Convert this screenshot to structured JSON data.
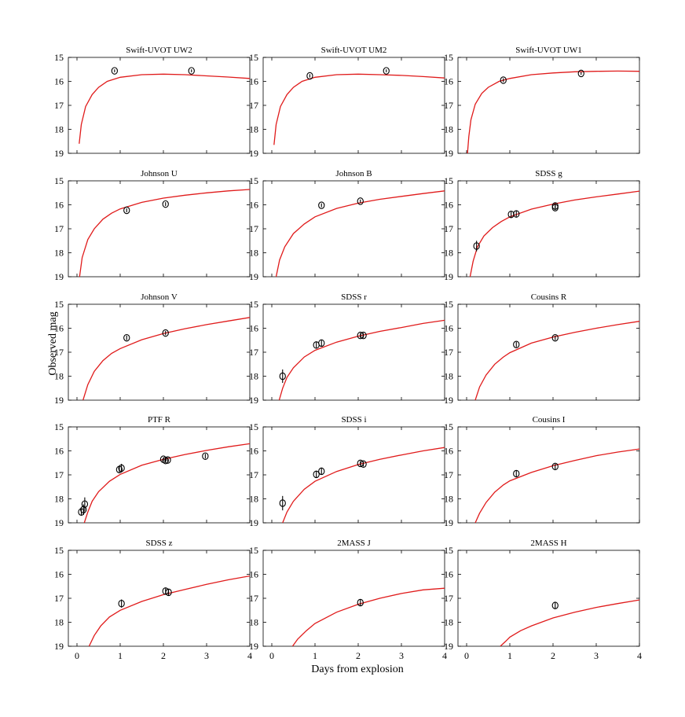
{
  "figure": {
    "ylabel": "Observed mag",
    "xlabel": "Days from explosion"
  },
  "chart_data": {
    "type": "scatter",
    "title": "",
    "xlabel": "Days from explosion",
    "ylabel": "Observed mag",
    "xlim": [
      -0.2,
      4
    ],
    "ylim": [
      19,
      15
    ],
    "y_inverted": true,
    "x_ticks": [
      0,
      1,
      2,
      3,
      4
    ],
    "y_ticks": [
      15,
      16,
      17,
      18,
      19
    ],
    "colors": {
      "model": "#e01b1b",
      "points": "#000000"
    },
    "grid": false,
    "panels": [
      {
        "title": "Swift-UVOT UW2",
        "model": [
          [
            0.05,
            18.6
          ],
          [
            0.1,
            17.8
          ],
          [
            0.2,
            17.05
          ],
          [
            0.35,
            16.55
          ],
          [
            0.5,
            16.25
          ],
          [
            0.7,
            16.0
          ],
          [
            1.0,
            15.83
          ],
          [
            1.5,
            15.72
          ],
          [
            2.0,
            15.7
          ],
          [
            2.5,
            15.72
          ],
          [
            3.0,
            15.77
          ],
          [
            3.5,
            15.82
          ],
          [
            4.0,
            15.88
          ]
        ],
        "points": [
          {
            "x": 0.87,
            "y": 15.56,
            "err": 0.06
          },
          {
            "x": 2.65,
            "y": 15.56,
            "err": 0.06
          }
        ]
      },
      {
        "title": "Swift-UVOT UM2",
        "model": [
          [
            0.05,
            18.65
          ],
          [
            0.1,
            17.8
          ],
          [
            0.2,
            17.05
          ],
          [
            0.35,
            16.55
          ],
          [
            0.5,
            16.25
          ],
          [
            0.7,
            16.0
          ],
          [
            1.0,
            15.83
          ],
          [
            1.5,
            15.72
          ],
          [
            2.0,
            15.7
          ],
          [
            2.5,
            15.72
          ],
          [
            3.0,
            15.75
          ],
          [
            3.5,
            15.8
          ],
          [
            4.0,
            15.86
          ]
        ],
        "points": [
          {
            "x": 0.88,
            "y": 15.77,
            "err": 0.07
          },
          {
            "x": 2.65,
            "y": 15.56,
            "err": 0.06
          }
        ]
      },
      {
        "title": "Swift-UVOT UW1",
        "model": [
          [
            0.02,
            19.0
          ],
          [
            0.05,
            18.3
          ],
          [
            0.1,
            17.6
          ],
          [
            0.2,
            16.95
          ],
          [
            0.35,
            16.5
          ],
          [
            0.5,
            16.25
          ],
          [
            0.75,
            16.0
          ],
          [
            1.0,
            15.88
          ],
          [
            1.5,
            15.72
          ],
          [
            2.0,
            15.65
          ],
          [
            2.5,
            15.6
          ],
          [
            3.0,
            15.58
          ],
          [
            3.5,
            15.57
          ],
          [
            4.0,
            15.58
          ]
        ],
        "points": [
          {
            "x": 0.85,
            "y": 15.95,
            "err": 0.08
          },
          {
            "x": 2.65,
            "y": 15.67,
            "err": 0.06
          }
        ]
      },
      {
        "title": "Johnson U",
        "model": [
          [
            0.06,
            19.0
          ],
          [
            0.12,
            18.2
          ],
          [
            0.25,
            17.45
          ],
          [
            0.4,
            17.0
          ],
          [
            0.6,
            16.6
          ],
          [
            0.8,
            16.35
          ],
          [
            1.0,
            16.17
          ],
          [
            1.5,
            15.9
          ],
          [
            2.0,
            15.72
          ],
          [
            2.5,
            15.6
          ],
          [
            3.0,
            15.5
          ],
          [
            3.5,
            15.42
          ],
          [
            4.0,
            15.36
          ]
        ],
        "points": [
          {
            "x": 1.15,
            "y": 16.23,
            "err": 0.08
          },
          {
            "x": 2.05,
            "y": 15.97,
            "err": 0.08
          }
        ]
      },
      {
        "title": "Johnson B",
        "model": [
          [
            0.1,
            19.0
          ],
          [
            0.18,
            18.3
          ],
          [
            0.3,
            17.75
          ],
          [
            0.5,
            17.2
          ],
          [
            0.75,
            16.8
          ],
          [
            1.0,
            16.5
          ],
          [
            1.5,
            16.15
          ],
          [
            2.0,
            15.93
          ],
          [
            2.5,
            15.77
          ],
          [
            3.0,
            15.65
          ],
          [
            3.5,
            15.53
          ],
          [
            4.0,
            15.42
          ]
        ],
        "points": [
          {
            "x": 1.15,
            "y": 16.02,
            "err": 0.08
          },
          {
            "x": 2.05,
            "y": 15.85,
            "err": 0.07
          }
        ]
      },
      {
        "title": "SDSS g",
        "model": [
          [
            0.08,
            19.0
          ],
          [
            0.15,
            18.35
          ],
          [
            0.25,
            17.75
          ],
          [
            0.4,
            17.3
          ],
          [
            0.6,
            16.95
          ],
          [
            0.8,
            16.7
          ],
          [
            1.0,
            16.5
          ],
          [
            1.5,
            16.18
          ],
          [
            2.0,
            15.97
          ],
          [
            2.5,
            15.8
          ],
          [
            3.0,
            15.67
          ],
          [
            3.5,
            15.55
          ],
          [
            4.0,
            15.43
          ]
        ],
        "points": [
          {
            "x": 0.23,
            "y": 17.72,
            "err": 0.22
          },
          {
            "x": 1.03,
            "y": 16.4,
            "err": 0.13
          },
          {
            "x": 1.15,
            "y": 16.38,
            "err": 0.12
          },
          {
            "x": 2.05,
            "y": 16.05,
            "err": 0.1
          },
          {
            "x": 2.05,
            "y": 16.12,
            "err": 0.1
          }
        ]
      },
      {
        "title": "Johnson V",
        "model": [
          [
            0.14,
            19.0
          ],
          [
            0.25,
            18.35
          ],
          [
            0.4,
            17.8
          ],
          [
            0.6,
            17.35
          ],
          [
            0.8,
            17.05
          ],
          [
            1.0,
            16.85
          ],
          [
            1.5,
            16.48
          ],
          [
            2.0,
            16.22
          ],
          [
            2.5,
            16.02
          ],
          [
            3.0,
            15.85
          ],
          [
            3.5,
            15.7
          ],
          [
            4.0,
            15.55
          ]
        ],
        "points": [
          {
            "x": 1.15,
            "y": 16.4,
            "err": 0.1
          },
          {
            "x": 2.05,
            "y": 16.2,
            "err": 0.09
          }
        ]
      },
      {
        "title": "SDSS r",
        "model": [
          [
            0.17,
            19.0
          ],
          [
            0.25,
            18.5
          ],
          [
            0.35,
            18.05
          ],
          [
            0.5,
            17.65
          ],
          [
            0.75,
            17.2
          ],
          [
            1.0,
            16.92
          ],
          [
            1.5,
            16.58
          ],
          [
            2.0,
            16.33
          ],
          [
            2.5,
            16.13
          ],
          [
            3.0,
            15.97
          ],
          [
            3.5,
            15.8
          ],
          [
            4.0,
            15.67
          ]
        ],
        "points": [
          {
            "x": 0.25,
            "y": 18.0,
            "err": 0.28
          },
          {
            "x": 1.03,
            "y": 16.7,
            "err": 0.13
          },
          {
            "x": 1.15,
            "y": 16.62,
            "err": 0.12
          },
          {
            "x": 2.05,
            "y": 16.3,
            "err": 0.1
          },
          {
            "x": 2.12,
            "y": 16.3,
            "err": 0.1
          }
        ]
      },
      {
        "title": "Cousins R",
        "model": [
          [
            0.2,
            19.0
          ],
          [
            0.3,
            18.45
          ],
          [
            0.45,
            17.95
          ],
          [
            0.65,
            17.5
          ],
          [
            0.85,
            17.2
          ],
          [
            1.0,
            17.02
          ],
          [
            1.5,
            16.62
          ],
          [
            2.0,
            16.37
          ],
          [
            2.5,
            16.17
          ],
          [
            3.0,
            16.0
          ],
          [
            3.5,
            15.85
          ],
          [
            4.0,
            15.71
          ]
        ],
        "points": [
          {
            "x": 1.15,
            "y": 16.68,
            "err": 0.11
          },
          {
            "x": 2.05,
            "y": 16.4,
            "err": 0.1
          }
        ]
      },
      {
        "title": "PTF R",
        "model": [
          [
            0.17,
            19.0
          ],
          [
            0.25,
            18.55
          ],
          [
            0.35,
            18.1
          ],
          [
            0.5,
            17.7
          ],
          [
            0.75,
            17.27
          ],
          [
            1.0,
            16.98
          ],
          [
            1.5,
            16.6
          ],
          [
            2.0,
            16.35
          ],
          [
            2.5,
            16.15
          ],
          [
            3.0,
            15.98
          ],
          [
            3.5,
            15.83
          ],
          [
            4.0,
            15.7
          ]
        ],
        "points": [
          {
            "x": 0.1,
            "y": 18.55,
            "err": 0.15
          },
          {
            "x": 0.15,
            "y": 18.45,
            "err": 0.22
          },
          {
            "x": 0.18,
            "y": 18.22,
            "err": 0.28
          },
          {
            "x": 0.98,
            "y": 16.78,
            "err": 0.12
          },
          {
            "x": 1.03,
            "y": 16.72,
            "err": 0.18
          },
          {
            "x": 2.0,
            "y": 16.35,
            "err": 0.08
          },
          {
            "x": 2.05,
            "y": 16.4,
            "err": 0.1
          },
          {
            "x": 2.1,
            "y": 16.38,
            "err": 0.08
          },
          {
            "x": 2.97,
            "y": 16.22,
            "err": 0.1
          }
        ]
      },
      {
        "title": "SDSS i",
        "model": [
          [
            0.25,
            19.0
          ],
          [
            0.35,
            18.55
          ],
          [
            0.5,
            18.1
          ],
          [
            0.75,
            17.6
          ],
          [
            1.0,
            17.27
          ],
          [
            1.5,
            16.86
          ],
          [
            2.0,
            16.57
          ],
          [
            2.5,
            16.35
          ],
          [
            3.0,
            16.17
          ],
          [
            3.5,
            16.0
          ],
          [
            4.0,
            15.86
          ]
        ],
        "points": [
          {
            "x": 0.25,
            "y": 18.18,
            "err": 0.3
          },
          {
            "x": 1.03,
            "y": 16.98,
            "err": 0.15
          },
          {
            "x": 1.15,
            "y": 16.85,
            "err": 0.14
          },
          {
            "x": 2.05,
            "y": 16.52,
            "err": 0.1
          },
          {
            "x": 2.12,
            "y": 16.55,
            "err": 0.1
          }
        ]
      },
      {
        "title": "Cousins I",
        "model": [
          [
            0.2,
            19.0
          ],
          [
            0.3,
            18.6
          ],
          [
            0.45,
            18.15
          ],
          [
            0.65,
            17.72
          ],
          [
            0.85,
            17.42
          ],
          [
            1.0,
            17.25
          ],
          [
            1.5,
            16.9
          ],
          [
            2.0,
            16.62
          ],
          [
            2.5,
            16.4
          ],
          [
            3.0,
            16.2
          ],
          [
            3.5,
            16.05
          ],
          [
            4.0,
            15.92
          ]
        ],
        "points": [
          {
            "x": 1.15,
            "y": 16.95,
            "err": 0.13
          },
          {
            "x": 2.05,
            "y": 16.65,
            "err": 0.12
          }
        ]
      },
      {
        "title": "SDSS z",
        "model": [
          [
            0.28,
            19.0
          ],
          [
            0.4,
            18.55
          ],
          [
            0.55,
            18.15
          ],
          [
            0.75,
            17.78
          ],
          [
            1.0,
            17.5
          ],
          [
            1.5,
            17.13
          ],
          [
            2.0,
            16.85
          ],
          [
            2.5,
            16.63
          ],
          [
            3.0,
            16.42
          ],
          [
            3.5,
            16.23
          ],
          [
            4.0,
            16.07
          ]
        ],
        "points": [
          {
            "x": 1.03,
            "y": 17.22,
            "err": 0.17
          },
          {
            "x": 2.05,
            "y": 16.7,
            "err": 0.12
          },
          {
            "x": 2.12,
            "y": 16.75,
            "err": 0.12
          }
        ]
      },
      {
        "title": "2MASS J",
        "model": [
          [
            0.48,
            19.0
          ],
          [
            0.6,
            18.7
          ],
          [
            0.8,
            18.35
          ],
          [
            1.0,
            18.05
          ],
          [
            1.5,
            17.58
          ],
          [
            2.0,
            17.25
          ],
          [
            2.5,
            17.0
          ],
          [
            3.0,
            16.8
          ],
          [
            3.5,
            16.65
          ],
          [
            4.0,
            16.58
          ]
        ],
        "points": [
          {
            "x": 2.05,
            "y": 17.18,
            "err": 0.14
          }
        ]
      },
      {
        "title": "2MASS H",
        "model": [
          [
            0.78,
            19.0
          ],
          [
            0.9,
            18.8
          ],
          [
            1.0,
            18.62
          ],
          [
            1.25,
            18.35
          ],
          [
            1.5,
            18.15
          ],
          [
            2.0,
            17.82
          ],
          [
            2.5,
            17.58
          ],
          [
            3.0,
            17.38
          ],
          [
            3.5,
            17.22
          ],
          [
            4.0,
            17.07
          ]
        ],
        "points": [
          {
            "x": 2.05,
            "y": 17.3,
            "err": 0.15
          }
        ]
      }
    ]
  }
}
